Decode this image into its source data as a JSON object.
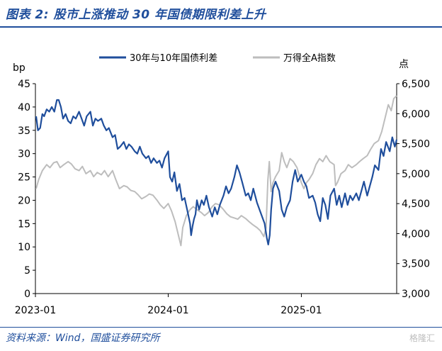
{
  "figure": {
    "title": "图表 2: 股市上涨推动 30 年国债期限利差上升",
    "source": "资料来源：Wind，国盛证券研究所",
    "watermark": "格隆汇"
  },
  "colors": {
    "accent": "#1f4e9c",
    "spread": "#1f4e9c",
    "index": "#bdbdbd"
  },
  "chart_data": {
    "type": "line",
    "title": "",
    "ylabel_left": "bp",
    "ylabel_right": "点",
    "xlabel": "",
    "ylim_left": [
      0,
      45
    ],
    "ylim_right": [
      3000,
      6500
    ],
    "yticks_left": [
      0,
      5,
      10,
      15,
      20,
      25,
      30,
      35,
      40,
      45
    ],
    "yticks_right": [
      "3,000",
      "3,500",
      "4,000",
      "4,500",
      "5,000",
      "5,500",
      "6,000",
      "6,500"
    ],
    "yticks_right_values": [
      3000,
      3500,
      4000,
      4500,
      5000,
      5500,
      6000,
      6500
    ],
    "x_range": [
      "2023-01-01",
      "2025-09-20"
    ],
    "xticks": [
      {
        "label": "2023-01",
        "date": "2023-01-01"
      },
      {
        "label": "2024-01",
        "date": "2024-01-01"
      },
      {
        "label": "2025-01",
        "date": "2025-01-01"
      }
    ],
    "legend_position": "top-center",
    "grid": false,
    "series": [
      {
        "name": "30年与10年国债利差",
        "axis": "left",
        "points": [
          [
            "2023-01-03",
            38
          ],
          [
            "2023-01-08",
            35
          ],
          [
            "2023-01-14",
            35.5
          ],
          [
            "2023-01-20",
            38.5
          ],
          [
            "2023-01-25",
            38
          ],
          [
            "2023-02-01",
            39.5
          ],
          [
            "2023-02-08",
            39
          ],
          [
            "2023-02-15",
            40
          ],
          [
            "2023-02-22",
            39
          ],
          [
            "2023-03-01",
            41.5
          ],
          [
            "2023-03-06",
            41.5
          ],
          [
            "2023-03-12",
            40
          ],
          [
            "2023-03-18",
            37.5
          ],
          [
            "2023-03-25",
            38.5
          ],
          [
            "2023-04-01",
            37
          ],
          [
            "2023-04-08",
            36.5
          ],
          [
            "2023-04-15",
            38
          ],
          [
            "2023-04-22",
            37.5
          ],
          [
            "2023-05-01",
            39
          ],
          [
            "2023-05-08",
            37.5
          ],
          [
            "2023-05-15",
            36
          ],
          [
            "2023-05-22",
            38
          ],
          [
            "2023-06-01",
            39
          ],
          [
            "2023-06-08",
            36
          ],
          [
            "2023-06-15",
            37.5
          ],
          [
            "2023-06-22",
            37
          ],
          [
            "2023-07-01",
            37.5
          ],
          [
            "2023-07-08",
            36
          ],
          [
            "2023-07-15",
            35
          ],
          [
            "2023-07-22",
            35.5
          ],
          [
            "2023-08-01",
            33.5
          ],
          [
            "2023-08-08",
            34
          ],
          [
            "2023-08-15",
            31
          ],
          [
            "2023-08-22",
            31.5
          ],
          [
            "2023-09-01",
            32.5
          ],
          [
            "2023-09-08",
            31
          ],
          [
            "2023-09-15",
            32
          ],
          [
            "2023-09-22",
            31.5
          ],
          [
            "2023-10-01",
            30.5
          ],
          [
            "2023-10-08",
            30
          ],
          [
            "2023-10-15",
            31.5
          ],
          [
            "2023-10-22",
            30
          ],
          [
            "2023-11-01",
            29
          ],
          [
            "2023-11-08",
            29.5
          ],
          [
            "2023-11-15",
            28
          ],
          [
            "2023-11-22",
            29
          ],
          [
            "2023-12-01",
            28
          ],
          [
            "2023-12-08",
            28.5
          ],
          [
            "2023-12-15",
            27
          ],
          [
            "2023-12-22",
            29
          ],
          [
            "2024-01-01",
            30.5
          ],
          [
            "2024-01-06",
            25
          ],
          [
            "2024-01-12",
            24
          ],
          [
            "2024-01-18",
            26
          ],
          [
            "2024-01-25",
            22
          ],
          [
            "2024-02-01",
            23.5
          ],
          [
            "2024-02-08",
            20
          ],
          [
            "2024-02-15",
            20.5
          ],
          [
            "2024-02-22",
            18
          ],
          [
            "2024-03-01",
            15
          ],
          [
            "2024-03-04",
            12.5
          ],
          [
            "2024-03-08",
            14.5
          ],
          [
            "2024-03-12",
            16
          ],
          [
            "2024-03-16",
            17
          ],
          [
            "2024-03-20",
            20
          ],
          [
            "2024-03-26",
            18
          ],
          [
            "2024-04-02",
            20
          ],
          [
            "2024-04-08",
            19
          ],
          [
            "2024-04-15",
            21
          ],
          [
            "2024-04-22",
            18.5
          ],
          [
            "2024-05-01",
            16.5
          ],
          [
            "2024-05-08",
            18.5
          ],
          [
            "2024-05-15",
            17
          ],
          [
            "2024-05-22",
            19
          ],
          [
            "2024-06-01",
            21
          ],
          [
            "2024-06-08",
            23
          ],
          [
            "2024-06-15",
            21.5
          ],
          [
            "2024-06-22",
            22.5
          ],
          [
            "2024-07-01",
            25
          ],
          [
            "2024-07-08",
            27.5
          ],
          [
            "2024-07-15",
            26
          ],
          [
            "2024-07-22",
            24
          ],
          [
            "2024-08-01",
            21
          ],
          [
            "2024-08-08",
            21.5
          ],
          [
            "2024-08-15",
            20
          ],
          [
            "2024-08-22",
            22.5
          ],
          [
            "2024-09-01",
            19.5
          ],
          [
            "2024-09-08",
            18
          ],
          [
            "2024-09-15",
            16.5
          ],
          [
            "2024-09-22",
            15
          ],
          [
            "2024-09-28",
            12
          ],
          [
            "2024-10-02",
            10.5
          ],
          [
            "2024-10-06",
            12.5
          ],
          [
            "2024-10-10",
            18
          ],
          [
            "2024-10-15",
            22.5
          ],
          [
            "2024-10-22",
            24
          ],
          [
            "2024-11-01",
            22
          ],
          [
            "2024-11-08",
            18
          ],
          [
            "2024-11-15",
            16.5
          ],
          [
            "2024-11-22",
            18.5
          ],
          [
            "2024-12-01",
            20
          ],
          [
            "2024-12-08",
            24
          ],
          [
            "2024-12-15",
            26.5
          ],
          [
            "2024-12-22",
            24
          ],
          [
            "2025-01-01",
            25.5
          ],
          [
            "2025-01-08",
            24
          ],
          [
            "2025-01-15",
            23
          ],
          [
            "2025-01-22",
            20.5
          ],
          [
            "2025-02-01",
            21
          ],
          [
            "2025-02-08",
            19.5
          ],
          [
            "2025-02-15",
            17
          ],
          [
            "2025-02-22",
            15.5
          ],
          [
            "2025-03-01",
            20.5
          ],
          [
            "2025-03-08",
            19
          ],
          [
            "2025-03-15",
            16
          ],
          [
            "2025-03-22",
            21
          ],
          [
            "2025-04-01",
            22.5
          ],
          [
            "2025-04-08",
            19
          ],
          [
            "2025-04-15",
            21
          ],
          [
            "2025-04-22",
            18.5
          ],
          [
            "2025-05-01",
            21.5
          ],
          [
            "2025-05-08",
            19
          ],
          [
            "2025-05-15",
            21
          ],
          [
            "2025-05-22",
            20
          ],
          [
            "2025-06-01",
            21.5
          ],
          [
            "2025-06-08",
            20
          ],
          [
            "2025-06-15",
            22
          ],
          [
            "2025-06-22",
            24
          ],
          [
            "2025-07-01",
            21
          ],
          [
            "2025-07-08",
            23
          ],
          [
            "2025-07-15",
            25
          ],
          [
            "2025-07-22",
            27.5
          ],
          [
            "2025-08-01",
            26.5
          ],
          [
            "2025-08-08",
            31
          ],
          [
            "2025-08-15",
            29.5
          ],
          [
            "2025-08-22",
            32.5
          ],
          [
            "2025-09-01",
            30.5
          ],
          [
            "2025-09-08",
            33.5
          ],
          [
            "2025-09-15",
            31.5
          ],
          [
            "2025-09-20",
            33
          ]
        ]
      },
      {
        "name": "万得全A指数",
        "axis": "right",
        "points": [
          [
            "2023-01-03",
            4750
          ],
          [
            "2023-01-10",
            4900
          ],
          [
            "2023-01-20",
            5050
          ],
          [
            "2023-02-01",
            5150
          ],
          [
            "2023-02-10",
            5100
          ],
          [
            "2023-02-20",
            5180
          ],
          [
            "2023-03-01",
            5200
          ],
          [
            "2023-03-10",
            5100
          ],
          [
            "2023-03-20",
            5150
          ],
          [
            "2023-04-01",
            5200
          ],
          [
            "2023-04-10",
            5160
          ],
          [
            "2023-04-20",
            5080
          ],
          [
            "2023-05-01",
            5050
          ],
          [
            "2023-05-10",
            5120
          ],
          [
            "2023-05-20",
            5000
          ],
          [
            "2023-06-01",
            5050
          ],
          [
            "2023-06-10",
            4950
          ],
          [
            "2023-06-20",
            5020
          ],
          [
            "2023-07-01",
            4980
          ],
          [
            "2023-07-10",
            5050
          ],
          [
            "2023-07-20",
            4950
          ],
          [
            "2023-08-01",
            5050
          ],
          [
            "2023-08-10",
            4900
          ],
          [
            "2023-08-20",
            4750
          ],
          [
            "2023-09-01",
            4800
          ],
          [
            "2023-09-10",
            4780
          ],
          [
            "2023-09-20",
            4720
          ],
          [
            "2023-10-01",
            4700
          ],
          [
            "2023-10-10",
            4650
          ],
          [
            "2023-10-20",
            4580
          ],
          [
            "2023-11-01",
            4620
          ],
          [
            "2023-11-10",
            4660
          ],
          [
            "2023-11-20",
            4640
          ],
          [
            "2023-12-01",
            4560
          ],
          [
            "2023-12-10",
            4480
          ],
          [
            "2023-12-20",
            4420
          ],
          [
            "2024-01-01",
            4500
          ],
          [
            "2024-01-10",
            4380
          ],
          [
            "2024-01-20",
            4200
          ],
          [
            "2024-01-28",
            4000
          ],
          [
            "2024-02-05",
            3800
          ],
          [
            "2024-02-10",
            4100
          ],
          [
            "2024-02-20",
            4300
          ],
          [
            "2024-03-01",
            4400
          ],
          [
            "2024-03-10",
            4450
          ],
          [
            "2024-03-20",
            4400
          ],
          [
            "2024-04-01",
            4350
          ],
          [
            "2024-04-10",
            4300
          ],
          [
            "2024-04-20",
            4350
          ],
          [
            "2024-05-01",
            4450
          ],
          [
            "2024-05-10",
            4500
          ],
          [
            "2024-05-20",
            4480
          ],
          [
            "2024-06-01",
            4400
          ],
          [
            "2024-06-10",
            4330
          ],
          [
            "2024-06-20",
            4280
          ],
          [
            "2024-07-01",
            4260
          ],
          [
            "2024-07-10",
            4240
          ],
          [
            "2024-07-20",
            4300
          ],
          [
            "2024-08-01",
            4250
          ],
          [
            "2024-08-10",
            4200
          ],
          [
            "2024-08-20",
            4150
          ],
          [
            "2024-09-01",
            4100
          ],
          [
            "2024-09-10",
            4050
          ],
          [
            "2024-09-20",
            3950
          ],
          [
            "2024-09-26",
            4100
          ],
          [
            "2024-10-01",
            4900
          ],
          [
            "2024-10-05",
            5200
          ],
          [
            "2024-10-10",
            4700
          ],
          [
            "2024-10-15",
            4850
          ],
          [
            "2024-10-22",
            4950
          ],
          [
            "2024-11-01",
            5050
          ],
          [
            "2024-11-08",
            5350
          ],
          [
            "2024-11-15",
            5200
          ],
          [
            "2024-11-22",
            5100
          ],
          [
            "2024-12-01",
            5250
          ],
          [
            "2024-12-10",
            5200
          ],
          [
            "2024-12-20",
            5100
          ],
          [
            "2025-01-01",
            4850
          ],
          [
            "2025-01-08",
            4750
          ],
          [
            "2025-01-15",
            4850
          ],
          [
            "2025-01-22",
            4900
          ],
          [
            "2025-02-01",
            5000
          ],
          [
            "2025-02-10",
            5150
          ],
          [
            "2025-02-20",
            5250
          ],
          [
            "2025-03-01",
            5200
          ],
          [
            "2025-03-10",
            5300
          ],
          [
            "2025-03-20",
            5200
          ],
          [
            "2025-04-01",
            5150
          ],
          [
            "2025-04-05",
            4800
          ],
          [
            "2025-04-10",
            4850
          ],
          [
            "2025-04-20",
            5000
          ],
          [
            "2025-05-01",
            5050
          ],
          [
            "2025-05-10",
            5150
          ],
          [
            "2025-05-20",
            5100
          ],
          [
            "2025-06-01",
            5150
          ],
          [
            "2025-06-10",
            5200
          ],
          [
            "2025-06-20",
            5250
          ],
          [
            "2025-07-01",
            5300
          ],
          [
            "2025-07-10",
            5400
          ],
          [
            "2025-07-20",
            5500
          ],
          [
            "2025-08-01",
            5550
          ],
          [
            "2025-08-10",
            5700
          ],
          [
            "2025-08-20",
            5950
          ],
          [
            "2025-08-28",
            6150
          ],
          [
            "2025-09-05",
            6050
          ],
          [
            "2025-09-12",
            6250
          ],
          [
            "2025-09-20",
            6300
          ]
        ]
      }
    ]
  }
}
